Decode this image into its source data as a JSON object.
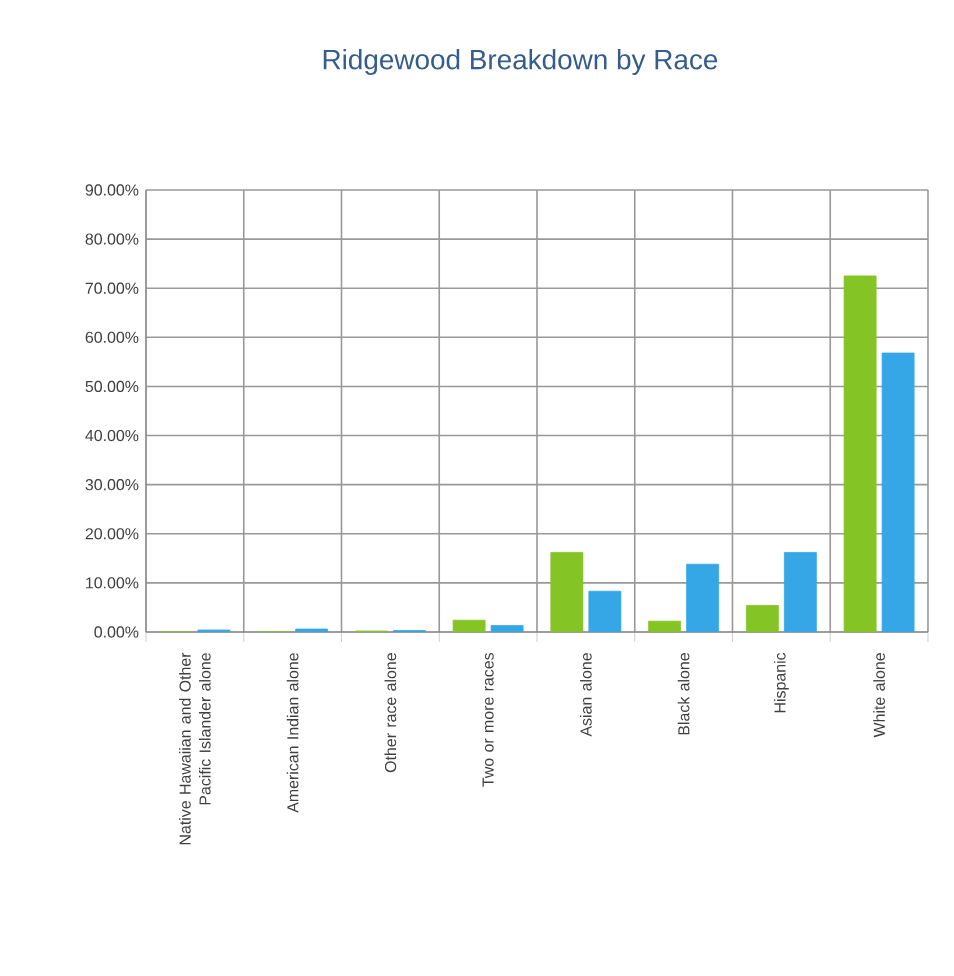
{
  "chart_data": {
    "type": "bar",
    "title": "Ridgewood Breakdown by Race",
    "categories": [
      "Native Hawaiian and Other Pacific Islander alone",
      "American Indian alone",
      "Other race alone",
      "Two or more races",
      "Asian alone",
      "Black alone",
      "Hispanic",
      "White alone"
    ],
    "series": [
      {
        "color": "#84c424",
        "values": [
          0,
          0,
          0.2,
          2.4,
          16.2,
          2.2,
          5.4,
          72.5
        ]
      },
      {
        "color": "#35a7e6",
        "values": [
          0.4,
          0.6,
          0.3,
          1.3,
          8.3,
          13.8,
          16.2,
          56.8
        ]
      }
    ],
    "ylim": [
      0,
      90
    ],
    "yticks": [
      {
        "value": 0,
        "label": "0.00%"
      },
      {
        "value": 10,
        "label": "10.00%"
      },
      {
        "value": 20,
        "label": "20.00%"
      },
      {
        "value": 30,
        "label": "30.00%"
      },
      {
        "value": 40,
        "label": "40.00%"
      },
      {
        "value": 50,
        "label": "50.00%"
      },
      {
        "value": 60,
        "label": "60.00%"
      },
      {
        "value": 70,
        "label": "70.00%"
      },
      {
        "value": 80,
        "label": "80.00%"
      },
      {
        "value": 90,
        "label": "90.00%"
      }
    ],
    "grid": true
  }
}
